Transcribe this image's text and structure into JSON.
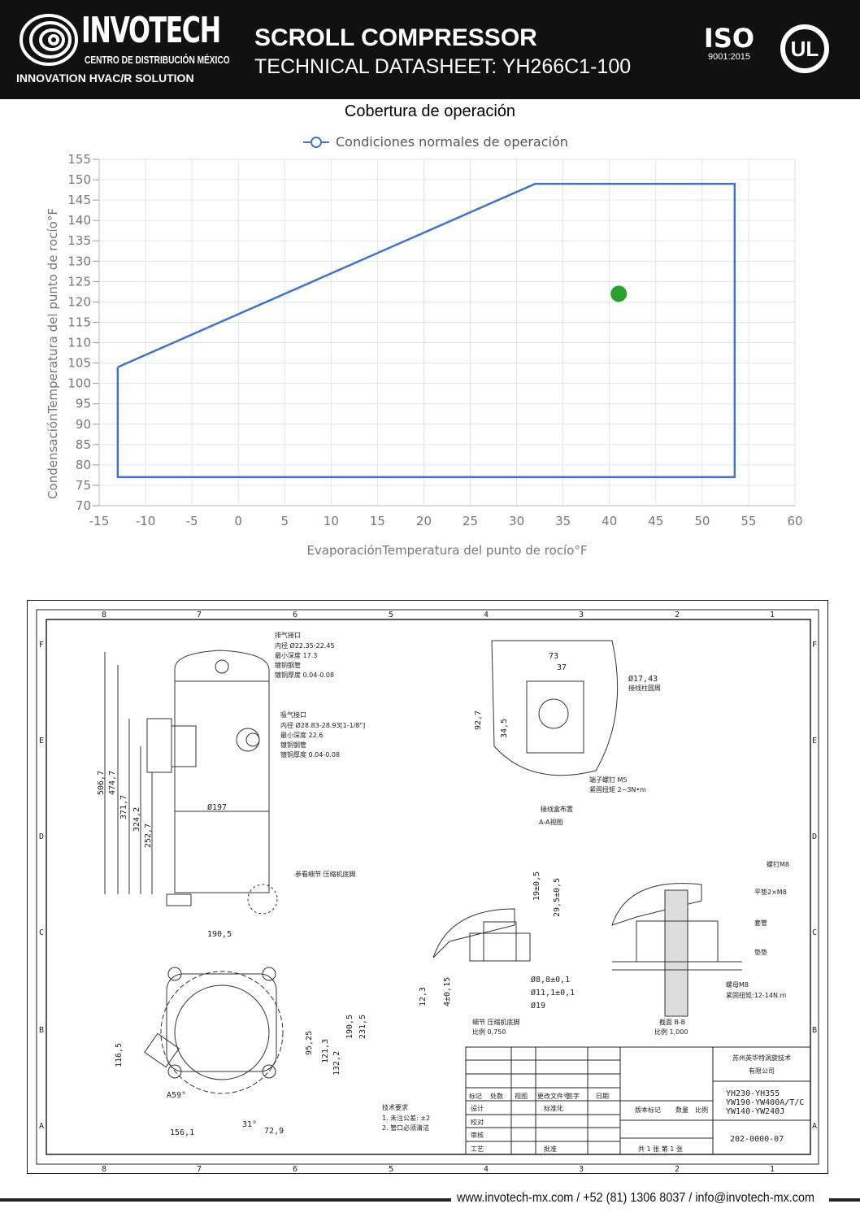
{
  "header": {
    "brand": "INVOTECH",
    "brand_sub": "CENTRO DE DISTRIBUCIÓN MÉXICO",
    "brand_tagline": "INNOVATION HVAC/R SOLUTION",
    "title": "SCROLL COMPRESSOR",
    "subtitle": "TECHNICAL DATASHEET: YH266C1-100",
    "iso_label": "ISO",
    "iso_year": "9001:2015",
    "ul_label": "UL"
  },
  "chart_data": {
    "type": "line",
    "title": "Cobertura de operación",
    "xlabel": "EvaporaciónTemperatura del punto de rocío°F",
    "ylabel": "CondensaciónTemperatura del punto de rocío°F",
    "xlim": [
      -15,
      60
    ],
    "ylim": [
      70,
      155
    ],
    "xticks": [
      -15,
      -10,
      -5,
      0,
      5,
      10,
      15,
      20,
      25,
      30,
      35,
      40,
      45,
      50,
      55,
      60
    ],
    "yticks": [
      70,
      75,
      80,
      85,
      90,
      95,
      100,
      105,
      110,
      115,
      120,
      125,
      130,
      135,
      140,
      145,
      150,
      155
    ],
    "grid": true,
    "legend_position": "top",
    "series": [
      {
        "name": "Condiciones normales de operación",
        "color": "#4472c4",
        "x": [
          -13,
          32,
          53.5,
          53.5,
          -13,
          -13
        ],
        "y": [
          104,
          149,
          149,
          77,
          77,
          104
        ]
      }
    ],
    "operating_point": {
      "x": 41,
      "y": 122,
      "color": "#2ca02c"
    }
  },
  "drawing": {
    "column_labels": [
      "8",
      "7",
      "6",
      "5",
      "4",
      "3",
      "2",
      "1"
    ],
    "row_labels": [
      "F",
      "E",
      "D",
      "C",
      "B",
      "A"
    ],
    "dims_side": [
      "506,7",
      "474,7",
      "371,7",
      "324,2",
      "252,7",
      "Ø197"
    ],
    "discharge": [
      "排气接口",
      "内径 Ø22.35-22.45",
      "最小深度 17.3",
      "镀铜钢管",
      "镀铜厚度 0.04-0.08"
    ],
    "suction": [
      "吸气接口",
      "内径 Ø28.83-28.93[1-1/8\"]",
      "最小深度 22.6",
      "镀铜钢管",
      "镀铜厚度 0.04-0.08"
    ],
    "foot_note": "参看细节 压缩机底脚",
    "terminal_dims": [
      "73",
      "37",
      "92,7",
      "34,5",
      "Ø17,43",
      "接线柱圆周",
      "端子螺钉 M5",
      "紧固扭矩 2~3N•m",
      "接线盒布置",
      "A-A视图"
    ],
    "foot_dims": [
      "19±0,5",
      "29,5±0,5",
      "12,3",
      "4±0,15",
      "Ø8,8±0,1",
      "Ø11,1±0,1",
      "Ø19",
      "细节 压缩机底脚",
      "比例 0,750"
    ],
    "bolt_labels": [
      "螺钉M8",
      "平垫2×M8",
      "套管",
      "垫垫",
      "螺母M8",
      "紧固扭矩:12-14N.m",
      "截面 B-B",
      "比例 1,000"
    ],
    "top_dims": [
      "190,5",
      "116,5",
      "95,25",
      "121,3",
      "132,2",
      "190,5",
      "231,5",
      "A59°",
      "31°",
      "156,1",
      "72,9"
    ],
    "notes": [
      "技术要求",
      "1. 未注公差: ±2",
      "2. 管口必须清洁"
    ],
    "company": [
      "苏州英华特涡旋技术",
      "有限公司"
    ],
    "models": [
      "YH230-YH355",
      "YW190-YW400A/T/C",
      "YW140-YW240J"
    ],
    "drawing_number": "202-0000-07",
    "title_block": [
      "标记",
      "处数",
      "视图",
      "更改文件号",
      "签字",
      "日期",
      "设计",
      "标准化",
      "校对",
      "审核",
      "工艺",
      "批准",
      "版本标记",
      "数量",
      "比例",
      "共 1 张 第 1 张"
    ]
  },
  "footer": {
    "contact": "www.invotech-mx.com / +52 (81) 1306 8037 / info@invotech-mx.com"
  }
}
